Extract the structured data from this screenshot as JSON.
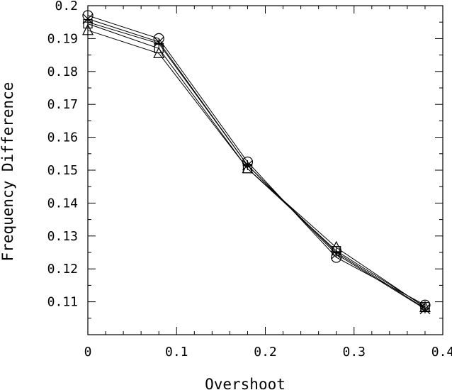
{
  "chart_data": {
    "type": "line",
    "title": "",
    "xlabel": "Overshoot",
    "ylabel": "Frequency Difference",
    "xlim": [
      0,
      0.4
    ],
    "ylim": [
      0.1,
      0.2
    ],
    "grid": false,
    "x": [
      0,
      0.08,
      0.18,
      0.28,
      0.38
    ],
    "x_ticks": [
      "0",
      "0.1",
      "0.2",
      "0.3",
      "0.4"
    ],
    "y_ticks": [
      "0.11",
      "0.12",
      "0.13",
      "0.14",
      "0.15",
      "0.16",
      "0.17",
      "0.18",
      "0.19",
      "0.2"
    ],
    "series": [
      {
        "marker": "circle",
        "values": [
          0.197,
          0.19,
          0.1525,
          0.1235,
          0.109
        ]
      },
      {
        "marker": "cross",
        "values": [
          0.196,
          0.189,
          0.1515,
          0.1245,
          0.1078
        ]
      },
      {
        "marker": "square",
        "values": [
          0.1945,
          0.187,
          0.1505,
          0.1255,
          0.1085
        ]
      },
      {
        "marker": "plus",
        "values": [
          0.195,
          0.1885,
          0.1515,
          0.125,
          0.108
        ]
      },
      {
        "marker": "triangle",
        "values": [
          0.1925,
          0.1855,
          0.1505,
          0.1265,
          0.1083
        ]
      }
    ]
  }
}
